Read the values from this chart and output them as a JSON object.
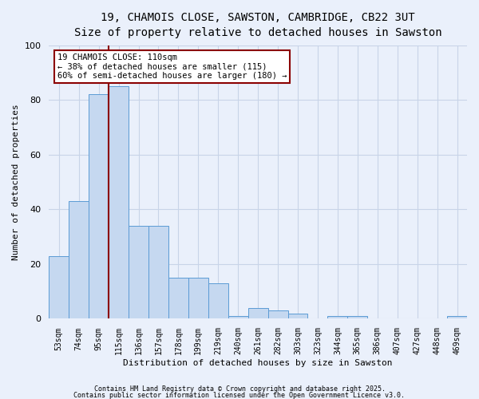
{
  "title_line1": "19, CHAMOIS CLOSE, SAWSTON, CAMBRIDGE, CB22 3UT",
  "title_line2": "Size of property relative to detached houses in Sawston",
  "xlabel": "Distribution of detached houses by size in Sawston",
  "ylabel": "Number of detached properties",
  "categories": [
    "53sqm",
    "74sqm",
    "95sqm",
    "115sqm",
    "136sqm",
    "157sqm",
    "178sqm",
    "199sqm",
    "219sqm",
    "240sqm",
    "261sqm",
    "282sqm",
    "303sqm",
    "323sqm",
    "344sqm",
    "365sqm",
    "386sqm",
    "407sqm",
    "427sqm",
    "448sqm",
    "469sqm"
  ],
  "values": [
    23,
    43,
    82,
    85,
    34,
    34,
    15,
    15,
    13,
    1,
    4,
    3,
    2,
    0,
    1,
    1,
    0,
    0,
    0,
    0,
    1
  ],
  "bar_color": "#c5d8f0",
  "bar_edge_color": "#5b9bd5",
  "vline_color": "#8b0000",
  "vline_x": 3.0,
  "annotation_text_line1": "19 CHAMOIS CLOSE: 110sqm",
  "annotation_text_line2": "← 38% of detached houses are smaller (115)",
  "annotation_text_line3": "60% of semi-detached houses are larger (180) →",
  "annotation_box_color": "#8b0000",
  "background_color": "#eaf0fb",
  "grid_color": "#c8d4e8",
  "footer_line1": "Contains HM Land Registry data © Crown copyright and database right 2025.",
  "footer_line2": "Contains public sector information licensed under the Open Government Licence v3.0.",
  "ylim": [
    0,
    100
  ],
  "title_fontsize": 10,
  "subtitle_fontsize": 9,
  "tick_fontsize": 7,
  "axis_label_fontsize": 8,
  "annotation_fontsize": 7.5,
  "footer_fontsize": 6
}
